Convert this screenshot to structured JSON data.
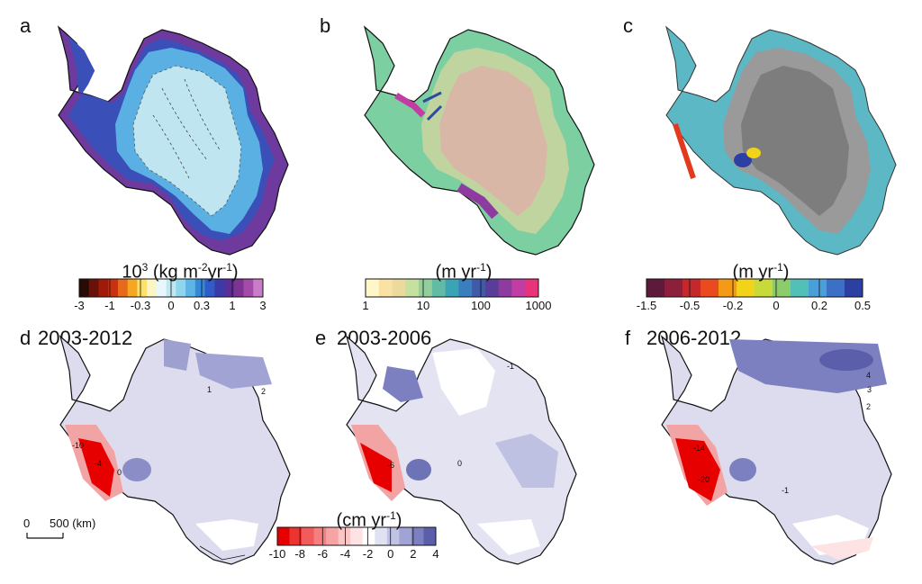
{
  "panels": {
    "a": {
      "letter": "a"
    },
    "b": {
      "letter": "b"
    },
    "c": {
      "letter": "c"
    },
    "d": {
      "letter": "d",
      "period": "2003-2012"
    },
    "e": {
      "letter": "e",
      "period": "2003-2006"
    },
    "f": {
      "letter": "f",
      "period": "2006-2012"
    }
  },
  "colorbars": {
    "smb": {
      "title_base": "10",
      "title_exp": "3",
      "title_mid": " (kg m",
      "title_exp2": "-2",
      "title_tail": "yr",
      "title_exp3": "-1",
      "title_end": ")",
      "ticks": [
        "-3",
        "-1",
        "-0.3",
        "0",
        "0.3",
        "1",
        "3"
      ]
    },
    "velocity": {
      "title_base": "(m yr",
      "title_exp": "-1",
      "title_end": ")",
      "ticks": [
        "1",
        "10",
        "100",
        "1000"
      ]
    },
    "dhdt": {
      "title_base": "(m yr",
      "title_exp": "-1",
      "title_end": ")",
      "ticks": [
        "-1.5",
        "-0.5",
        "-0.2",
        "0",
        "0.2",
        "0.5"
      ]
    },
    "gravity": {
      "title_base": "(cm yr",
      "title_exp": "-1",
      "title_end": ")",
      "ticks": [
        "-10",
        "-8",
        "-6",
        "-4",
        "-2",
        "0",
        "2",
        "4"
      ]
    }
  },
  "scale": {
    "label_zero": "0",
    "label_dist": "500 (km)"
  },
  "contour_labels": {
    "d": [
      "1",
      "2",
      "-10",
      "-4",
      "0"
    ],
    "e": [
      "-1",
      "-6",
      "0"
    ],
    "f": [
      "-14",
      "-20",
      "4",
      "3",
      "2",
      "-1"
    ]
  },
  "colors": {
    "smb": [
      "#2a0a05",
      "#6b1208",
      "#a01a0c",
      "#c8320f",
      "#e66a1a",
      "#f5a623",
      "#fce26a",
      "#fbf4c4",
      "#e7f7fb",
      "#bfe8f3",
      "#8fd5ec",
      "#5cb5e4",
      "#3488d8",
      "#2f5cc6",
      "#3b3aa8",
      "#5b2e97",
      "#7d3391",
      "#a44aa8",
      "#c97dc6"
    ],
    "velocity": [
      "#fff6c9",
      "#fbe2a4",
      "#ecd99c",
      "#c6e0a0",
      "#92cf9a",
      "#62bba5",
      "#3aa3b4",
      "#3a7ebd",
      "#3f5aa8",
      "#5a3d99",
      "#8e3b9f",
      "#c23da3",
      "#e8337a"
    ],
    "dhdt": [
      "#5d1a3a",
      "#8b1f3c",
      "#c3282c",
      "#e94a1f",
      "#f59a16",
      "#f3d31a",
      "#c8d93a",
      "#8dcc6b",
      "#53c0b8",
      "#4a9fd8",
      "#3c6fc6",
      "#2c3fa3"
    ],
    "gravity": [
      "#e60000",
      "#ed3332",
      "#f25b5b",
      "#f57f7f",
      "#f8a3a3",
      "#fbc5c5",
      "#fde3e3",
      "#ffffff",
      "#e0e1f1",
      "#c1c3e4",
      "#a0a3d3",
      "#7d80c0",
      "#5a5eab"
    ]
  }
}
